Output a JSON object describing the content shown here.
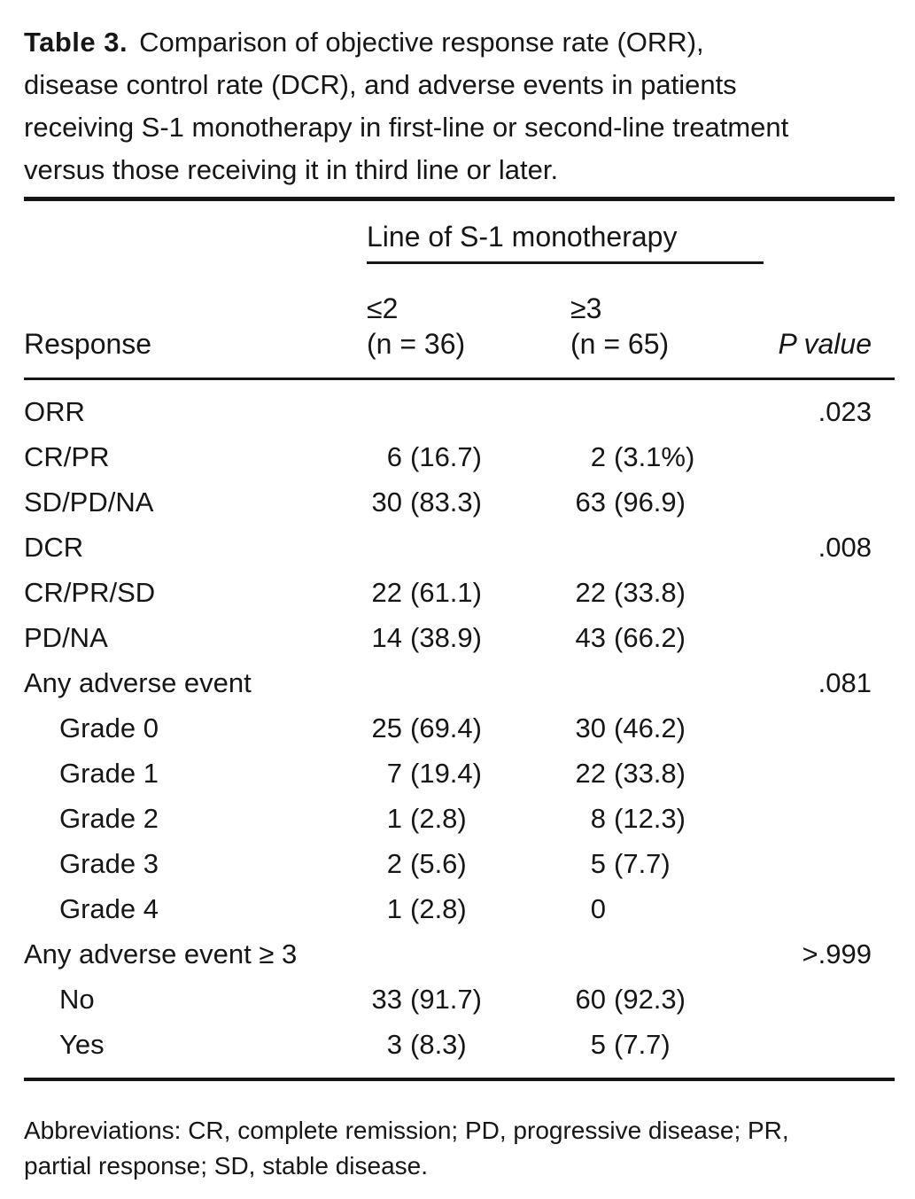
{
  "title": {
    "label": "Table 3.",
    "lines": [
      "Comparison of objective response rate (ORR),",
      "disease control rate (DCR), and adverse events in patients",
      "receiving S-1 monotherapy in first-line or second-line treatment",
      "versus those receiving it in third line or later."
    ]
  },
  "table": {
    "spanner_header": "Line of S-1 monotherapy",
    "col_headers": {
      "response": "Response",
      "group1_line1": "≤2",
      "group1_line2": "(n = 36)",
      "group2_line1": "≥3",
      "group2_line2": "(n = 65)",
      "p_value": "P value"
    },
    "rows": [
      {
        "label": "ORR",
        "c1_count": "",
        "c1_paren": "",
        "c2_count": "",
        "c2_paren": "",
        "p": ".023"
      },
      {
        "label": "CR/PR",
        "c1_count": "6",
        "c1_paren": "(16.7)",
        "c2_count": "2",
        "c2_paren": "(3.1%)",
        "p": ""
      },
      {
        "label": "SD/PD/NA",
        "c1_count": "30",
        "c1_paren": "(83.3)",
        "c2_count": "63",
        "c2_paren": "(96.9)",
        "p": ""
      },
      {
        "label": "DCR",
        "c1_count": "",
        "c1_paren": "",
        "c2_count": "",
        "c2_paren": "",
        "p": ".008"
      },
      {
        "label": "CR/PR/SD",
        "c1_count": "22",
        "c1_paren": "(61.1)",
        "c2_count": "22",
        "c2_paren": "(33.8)",
        "p": ""
      },
      {
        "label": "PD/NA",
        "c1_count": "14",
        "c1_paren": "(38.9)",
        "c2_count": "43",
        "c2_paren": "(66.2)",
        "p": ""
      },
      {
        "label": "Any adverse event",
        "c1_count": "",
        "c1_paren": "",
        "c2_count": "",
        "c2_paren": "",
        "p": ".081"
      },
      {
        "label": "Grade 0",
        "c1_count": "25",
        "c1_paren": "(69.4)",
        "c2_count": "30",
        "c2_paren": "(46.2)",
        "p": ""
      },
      {
        "label": "Grade 1",
        "c1_count": "7",
        "c1_paren": "(19.4)",
        "c2_count": "22",
        "c2_paren": "(33.8)",
        "p": ""
      },
      {
        "label": "Grade 2",
        "c1_count": "1",
        "c1_paren": "(2.8)",
        "c2_count": "8",
        "c2_paren": "(12.3)",
        "p": ""
      },
      {
        "label": "Grade 3",
        "c1_count": "2",
        "c1_paren": "(5.6)",
        "c2_count": "5",
        "c2_paren": "(7.7)",
        "p": ""
      },
      {
        "label": "Grade 4",
        "c1_count": "1",
        "c1_paren": "(2.8)",
        "c2_count": "0",
        "c2_paren": "",
        "p": ""
      },
      {
        "label": "Any adverse event ≥ 3",
        "c1_count": "",
        "c1_paren": "",
        "c2_count": "",
        "c2_paren": "",
        "p": ">.999"
      },
      {
        "label": "No",
        "c1_count": "33",
        "c1_paren": "(91.7)",
        "c2_count": "60",
        "c2_paren": "(92.3)",
        "p": ""
      },
      {
        "label": "Yes",
        "c1_count": "3",
        "c1_paren": "(8.3)",
        "c2_count": "5",
        "c2_paren": "(7.7)",
        "p": ""
      }
    ]
  },
  "footnote": {
    "lines": [
      "Abbreviations: CR, complete remission; PD, progressive disease; PR,",
      "partial response; SD, stable disease."
    ]
  },
  "colors": {
    "text": "#161616",
    "background": "#ffffff",
    "rule": "#161616"
  }
}
